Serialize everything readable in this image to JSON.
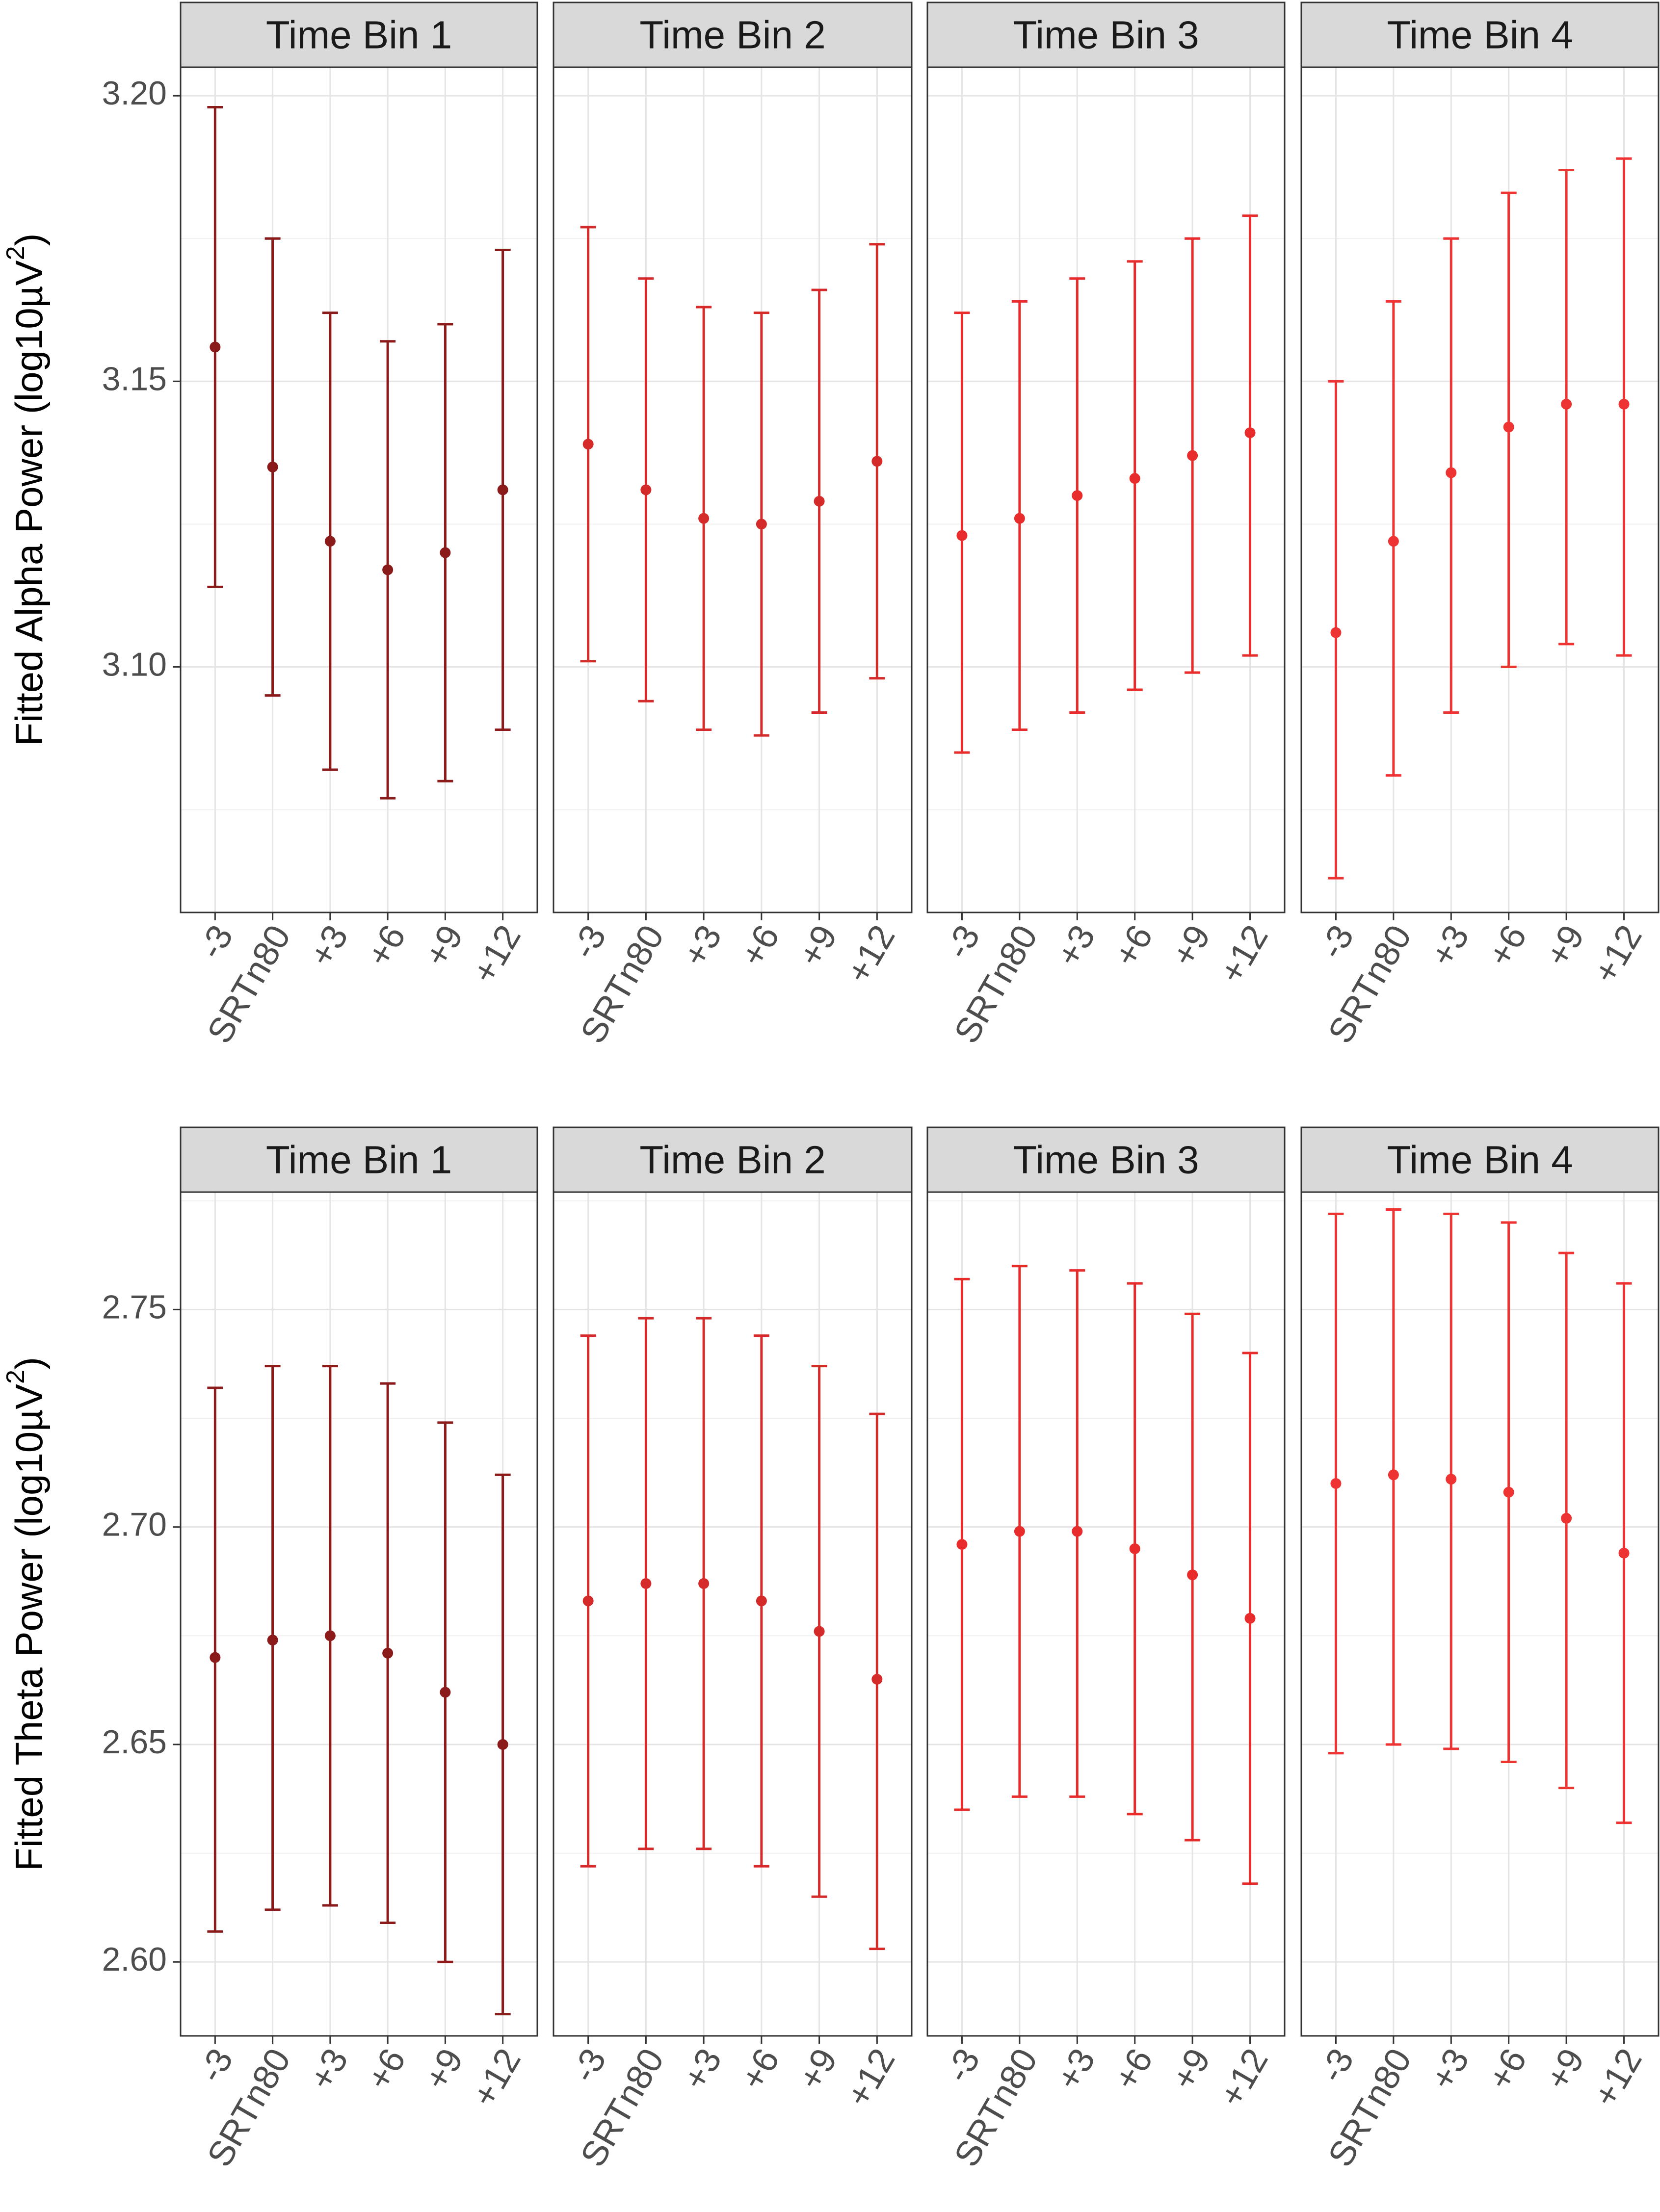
{
  "chart_data": [
    {
      "type": "errorbar",
      "ylabel": "Fitted Alpha Power (log10µV²)",
      "ylabel_parts": {
        "text": "Fitted Alpha Power (log10µV",
        "superscript": "2",
        "suffix": ")"
      },
      "ylim": [
        3.057,
        3.205
      ],
      "yticks": [
        "3.10",
        "3.15",
        "3.20"
      ],
      "ytick_values": [
        3.1,
        3.15,
        3.2
      ],
      "categories": [
        "-3",
        "SRTn80",
        "+3",
        "+6",
        "+9",
        "+12"
      ],
      "grid": true,
      "panels": [
        {
          "title": "Time Bin 1",
          "color": "#8B1A1A",
          "y": [
            3.156,
            3.135,
            3.122,
            3.117,
            3.12,
            3.131
          ],
          "lower": [
            3.114,
            3.095,
            3.082,
            3.077,
            3.08,
            3.089
          ],
          "upper": [
            3.198,
            3.175,
            3.162,
            3.157,
            3.16,
            3.173
          ]
        },
        {
          "title": "Time Bin 2",
          "color": "#D42A2A",
          "y": [
            3.139,
            3.131,
            3.126,
            3.125,
            3.129,
            3.136
          ],
          "lower": [
            3.101,
            3.094,
            3.089,
            3.088,
            3.092,
            3.098
          ],
          "upper": [
            3.177,
            3.168,
            3.163,
            3.162,
            3.166,
            3.174
          ]
        },
        {
          "title": "Time Bin 3",
          "color": "#E82B2B",
          "y": [
            3.123,
            3.126,
            3.13,
            3.133,
            3.137,
            3.141
          ],
          "lower": [
            3.085,
            3.089,
            3.092,
            3.096,
            3.099,
            3.102
          ],
          "upper": [
            3.162,
            3.164,
            3.168,
            3.171,
            3.175,
            3.179
          ]
        },
        {
          "title": "Time Bin 4",
          "color": "#EE3333",
          "y": [
            3.106,
            3.122,
            3.134,
            3.142,
            3.146,
            3.146
          ],
          "lower": [
            3.063,
            3.081,
            3.092,
            3.1,
            3.104,
            3.102
          ],
          "upper": [
            3.15,
            3.164,
            3.175,
            3.183,
            3.187,
            3.189
          ]
        }
      ]
    },
    {
      "type": "errorbar",
      "ylabel": "Fitted Theta Power (log10µV²)",
      "ylabel_parts": {
        "text": "Fitted Theta Power (log10µV",
        "superscript": "2",
        "suffix": ")"
      },
      "ylim": [
        2.583,
        2.777
      ],
      "yticks": [
        "2.60",
        "2.65",
        "2.70",
        "2.75"
      ],
      "ytick_values": [
        2.6,
        2.65,
        2.7,
        2.75
      ],
      "categories": [
        "-3",
        "SRTn80",
        "+3",
        "+6",
        "+9",
        "+12"
      ],
      "grid": true,
      "panels": [
        {
          "title": "Time Bin 1",
          "color": "#8B1A1A",
          "y": [
            2.67,
            2.674,
            2.675,
            2.671,
            2.662,
            2.65
          ],
          "lower": [
            2.607,
            2.612,
            2.613,
            2.609,
            2.6,
            2.588
          ],
          "upper": [
            2.732,
            2.737,
            2.737,
            2.733,
            2.724,
            2.712
          ]
        },
        {
          "title": "Time Bin 2",
          "color": "#D42A2A",
          "y": [
            2.683,
            2.687,
            2.687,
            2.683,
            2.676,
            2.665
          ],
          "lower": [
            2.622,
            2.626,
            2.626,
            2.622,
            2.615,
            2.603
          ],
          "upper": [
            2.744,
            2.748,
            2.748,
            2.744,
            2.737,
            2.726
          ]
        },
        {
          "title": "Time Bin 3",
          "color": "#E82B2B",
          "y": [
            2.696,
            2.699,
            2.699,
            2.695,
            2.689,
            2.679
          ],
          "lower": [
            2.635,
            2.638,
            2.638,
            2.634,
            2.628,
            2.618
          ],
          "upper": [
            2.757,
            2.76,
            2.759,
            2.756,
            2.749,
            2.74
          ]
        },
        {
          "title": "Time Bin 4",
          "color": "#EE3333",
          "y": [
            2.71,
            2.712,
            2.711,
            2.708,
            2.702,
            2.694
          ],
          "lower": [
            2.648,
            2.65,
            2.649,
            2.646,
            2.64,
            2.632
          ],
          "upper": [
            2.772,
            2.773,
            2.772,
            2.77,
            2.763,
            2.756
          ]
        }
      ]
    }
  ]
}
